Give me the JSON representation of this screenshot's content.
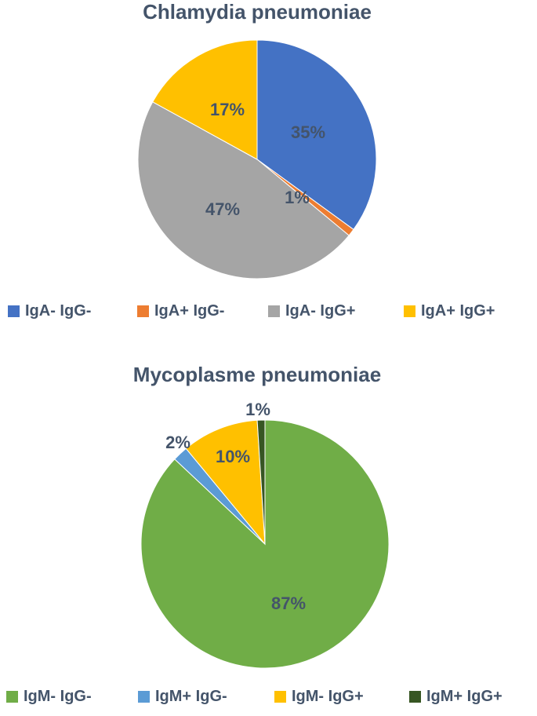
{
  "chart_data": [
    {
      "type": "pie",
      "title": "Chlamydia pneumoniae",
      "legend_position": "bottom",
      "start_angle_deg": 0,
      "direction": "clockwise",
      "slices": [
        {
          "label": "IgA- IgG-",
          "value": 35,
          "display": "35%",
          "color": "#4472c4"
        },
        {
          "label": "IgA+ IgG-",
          "value": 1,
          "display": "1%",
          "color": "#ed7d31"
        },
        {
          "label": "IgA- IgG+",
          "value": 47,
          "display": "47%",
          "color": "#a5a5a5"
        },
        {
          "label": "IgA+ IgG+",
          "value": 17,
          "display": "17%",
          "color": "#ffc000"
        }
      ]
    },
    {
      "type": "pie",
      "title": "Mycoplasme pneumoniae",
      "legend_position": "bottom",
      "start_angle_deg": 0,
      "direction": "clockwise",
      "slices": [
        {
          "label": "IgM- IgG-",
          "value": 87,
          "display": "87%",
          "color": "#70ad47"
        },
        {
          "label": "IgM+ IgG-",
          "value": 2,
          "display": "2%",
          "color": "#5b9bd5"
        },
        {
          "label": "IgM- IgG+",
          "value": 10,
          "display": "10%",
          "color": "#ffc000"
        },
        {
          "label": "IgM+ IgG+",
          "value": 1,
          "display": "1%",
          "color": "#375623"
        }
      ]
    }
  ]
}
